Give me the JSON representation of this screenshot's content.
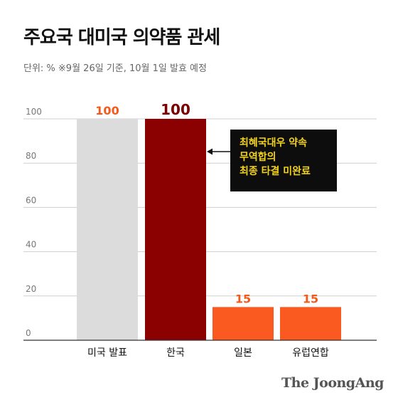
{
  "title": "주요국 대미국 의약품 관세",
  "subtitle": "단위: %  ※9월 26일 기준, 10월 1일 발효 예정",
  "annotation": {
    "lines": [
      "최혜국대우 약속",
      "무역합의",
      "최종 타결 미완료"
    ],
    "text_color": "#f3d21b",
    "background": "#0d0d0d"
  },
  "brand": "The JoongAng",
  "chart_data": {
    "type": "bar",
    "title": "주요국 대미국 의약품 관세",
    "ylabel": "",
    "xlabel": "",
    "ylim": [
      0,
      100
    ],
    "yticks": [
      0,
      20,
      40,
      60,
      80,
      100
    ],
    "grid": true,
    "categories": [
      "미국 발표",
      "한국",
      "일본",
      "유럽연합"
    ],
    "values": [
      100,
      100,
      15,
      15
    ],
    "value_labels": [
      "100",
      "100",
      "15",
      "15"
    ],
    "bar_colors": [
      "#dcdcdc",
      "#8b0000",
      "#fa5a1f",
      "#fa5a1f"
    ],
    "label_colors": [
      "#f25a1c",
      "#7a0000",
      "#f25a1c",
      "#f25a1c"
    ]
  }
}
